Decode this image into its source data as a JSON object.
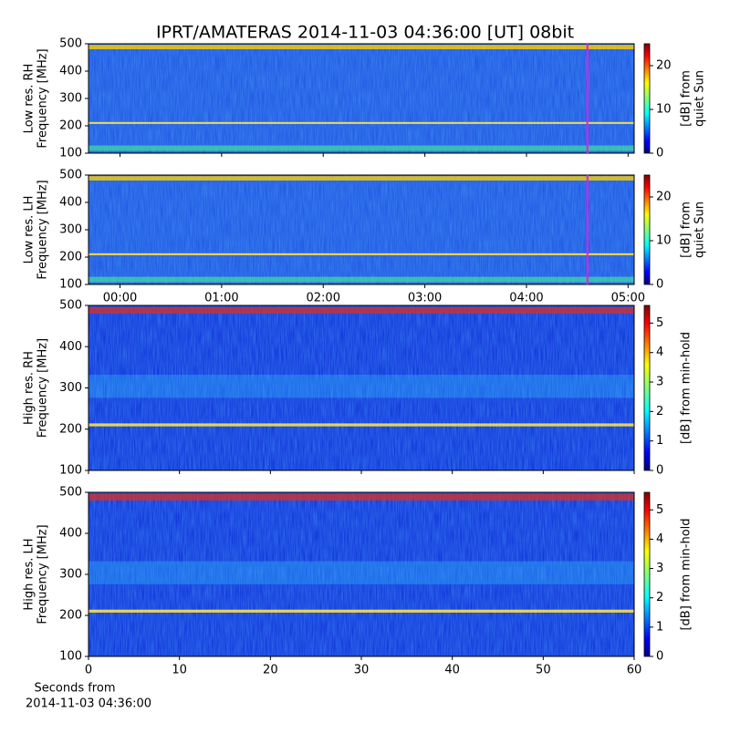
{
  "title": "IPRT/AMATERAS 2014-11-03 04:36:00 [UT]   08bit",
  "xlabel": [
    "Seconds from",
    "2014-11-03 04:36:00"
  ],
  "chart_data": [
    {
      "type": "heatmap",
      "ylabel": [
        "Low res. RH",
        "Frequency [MHz]"
      ],
      "ylim": [
        100,
        500
      ],
      "yticks": [
        100,
        200,
        300,
        400,
        500
      ],
      "xlim": [
        -0.31,
        5.06
      ],
      "xticks": [
        0,
        1,
        2,
        3,
        4,
        5
      ],
      "xtick_labels": false,
      "marker": 4.6,
      "marker_color": "#e020e0",
      "colorbar": {
        "label": [
          "[dB] from",
          "quiet Sun"
        ],
        "lim": [
          0,
          25
        ],
        "ticks": [
          0,
          10,
          20
        ]
      }
    },
    {
      "type": "heatmap",
      "ylabel": [
        "Low res. LH",
        "Frequency [MHz]"
      ],
      "ylim": [
        100,
        500
      ],
      "yticks": [
        100,
        200,
        300,
        400,
        500
      ],
      "xlim": [
        -0.31,
        5.06
      ],
      "xticks": [
        {
          "value": 0,
          "label": "00:00"
        },
        {
          "value": 1,
          "label": "01:00"
        },
        {
          "value": 2,
          "label": "02:00"
        },
        {
          "value": 3,
          "label": "03:00"
        },
        {
          "value": 4,
          "label": "04:00"
        },
        {
          "value": 5,
          "label": "05:00"
        }
      ],
      "xtick_labels": true,
      "marker": 4.6,
      "marker_color": "#e020e0",
      "colorbar": {
        "label": [
          "[dB] from",
          "quiet Sun"
        ],
        "lim": [
          0,
          25
        ],
        "ticks": [
          0,
          10,
          20
        ]
      }
    },
    {
      "type": "heatmap",
      "ylabel": [
        "High res. RH",
        "Frequency [MHz]"
      ],
      "ylim": [
        100,
        500
      ],
      "yticks": [
        100,
        200,
        300,
        400,
        500
      ],
      "xlim": [
        0,
        60
      ],
      "xticks": [
        0,
        10,
        20,
        30,
        40,
        50,
        60
      ],
      "xtick_labels": false,
      "colorbar": {
        "label": [
          "[dB] from min-hold"
        ],
        "lim": [
          0,
          5.6
        ],
        "ticks": [
          0,
          1,
          2,
          3,
          4,
          5
        ]
      }
    },
    {
      "type": "heatmap",
      "ylabel": [
        "High res. LH",
        "Frequency [MHz]"
      ],
      "ylim": [
        100,
        500
      ],
      "yticks": [
        100,
        200,
        300,
        400,
        500
      ],
      "xlim": [
        0,
        60
      ],
      "xticks": [
        0,
        10,
        20,
        30,
        40,
        50,
        60
      ],
      "xtick_labels": true,
      "colorbar": {
        "label": [
          "[dB] from min-hold"
        ],
        "lim": [
          0,
          5.6
        ],
        "ticks": [
          0,
          1,
          2,
          3,
          4,
          5
        ]
      }
    }
  ]
}
